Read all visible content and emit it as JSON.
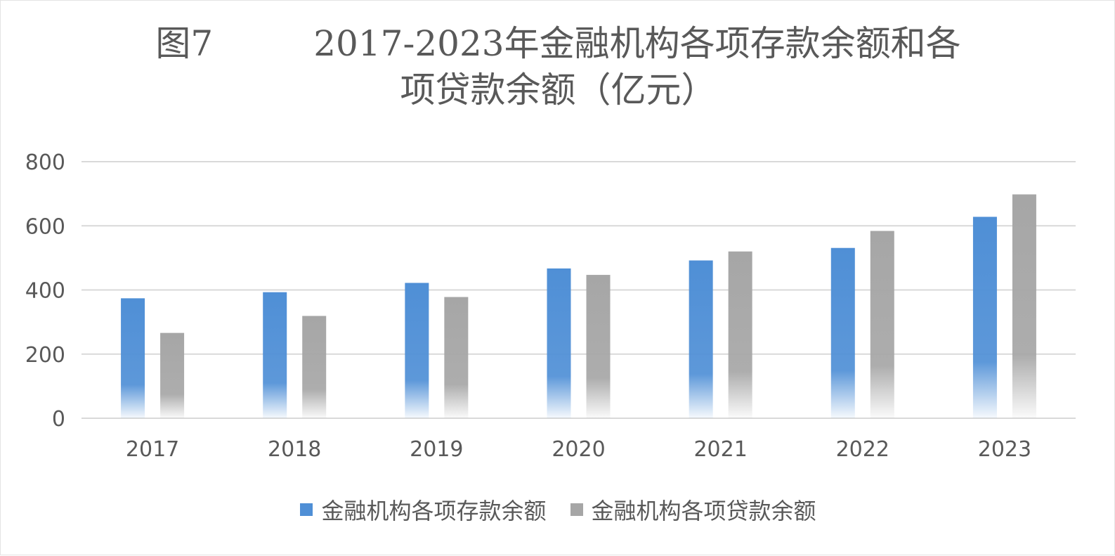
{
  "chart_data": {
    "type": "bar",
    "title_lines": [
      "图7         2017-2023年金融机构各项存款余额和各",
      "项贷款余额（亿元）"
    ],
    "categories": [
      "2017",
      "2018",
      "2019",
      "2020",
      "2021",
      "2022",
      "2023"
    ],
    "series": [
      {
        "name": "金融机构各项存款余额",
        "values": [
          374,
          393,
          422,
          467,
          492,
          531,
          628
        ],
        "color": "#4f8fd6"
      },
      {
        "name": "金融机构各项贷款余额",
        "values": [
          266,
          319,
          378,
          447,
          520,
          584,
          698
        ],
        "color": "#a6a6a6"
      }
    ],
    "ylim": [
      0,
      800
    ],
    "yticks": [
      0,
      200,
      400,
      600,
      800
    ],
    "grid": true,
    "legend_position": "bottom",
    "gridline_color": "#d9d9d9",
    "text_color": "#595959"
  }
}
